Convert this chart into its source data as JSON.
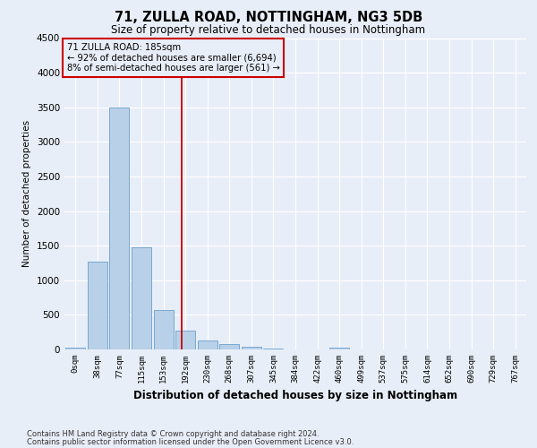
{
  "title1": "71, ZULLA ROAD, NOTTINGHAM, NG3 5DB",
  "title2": "Size of property relative to detached houses in Nottingham",
  "xlabel": "Distribution of detached houses by size in Nottingham",
  "ylabel": "Number of detached properties",
  "footer1": "Contains HM Land Registry data © Crown copyright and database right 2024.",
  "footer2": "Contains public sector information licensed under the Open Government Licence v3.0.",
  "bin_labels": [
    "0sqm",
    "38sqm",
    "77sqm",
    "115sqm",
    "153sqm",
    "192sqm",
    "230sqm",
    "268sqm",
    "307sqm",
    "345sqm",
    "384sqm",
    "422sqm",
    "460sqm",
    "499sqm",
    "537sqm",
    "575sqm",
    "614sqm",
    "652sqm",
    "690sqm",
    "729sqm",
    "767sqm"
  ],
  "bar_values": [
    25,
    1270,
    3500,
    1480,
    570,
    270,
    135,
    75,
    40,
    15,
    5,
    5,
    25,
    0,
    0,
    0,
    0,
    0,
    0,
    0,
    0
  ],
  "bar_color": "#b8d0e8",
  "bar_edgecolor": "#6aa0cc",
  "ylim": [
    0,
    4500
  ],
  "yticks": [
    0,
    500,
    1000,
    1500,
    2000,
    2500,
    3000,
    3500,
    4000,
    4500
  ],
  "annotation_line1": "71 ZULLA ROAD: 185sqm",
  "annotation_line2": "← 92% of detached houses are smaller (6,694)",
  "annotation_line3": "8% of semi-detached houses are larger (561) →",
  "vline_color": "#cc0000",
  "annotation_box_color": "#cc0000",
  "background_color": "#e8eef8",
  "grid_color": "#ffffff"
}
